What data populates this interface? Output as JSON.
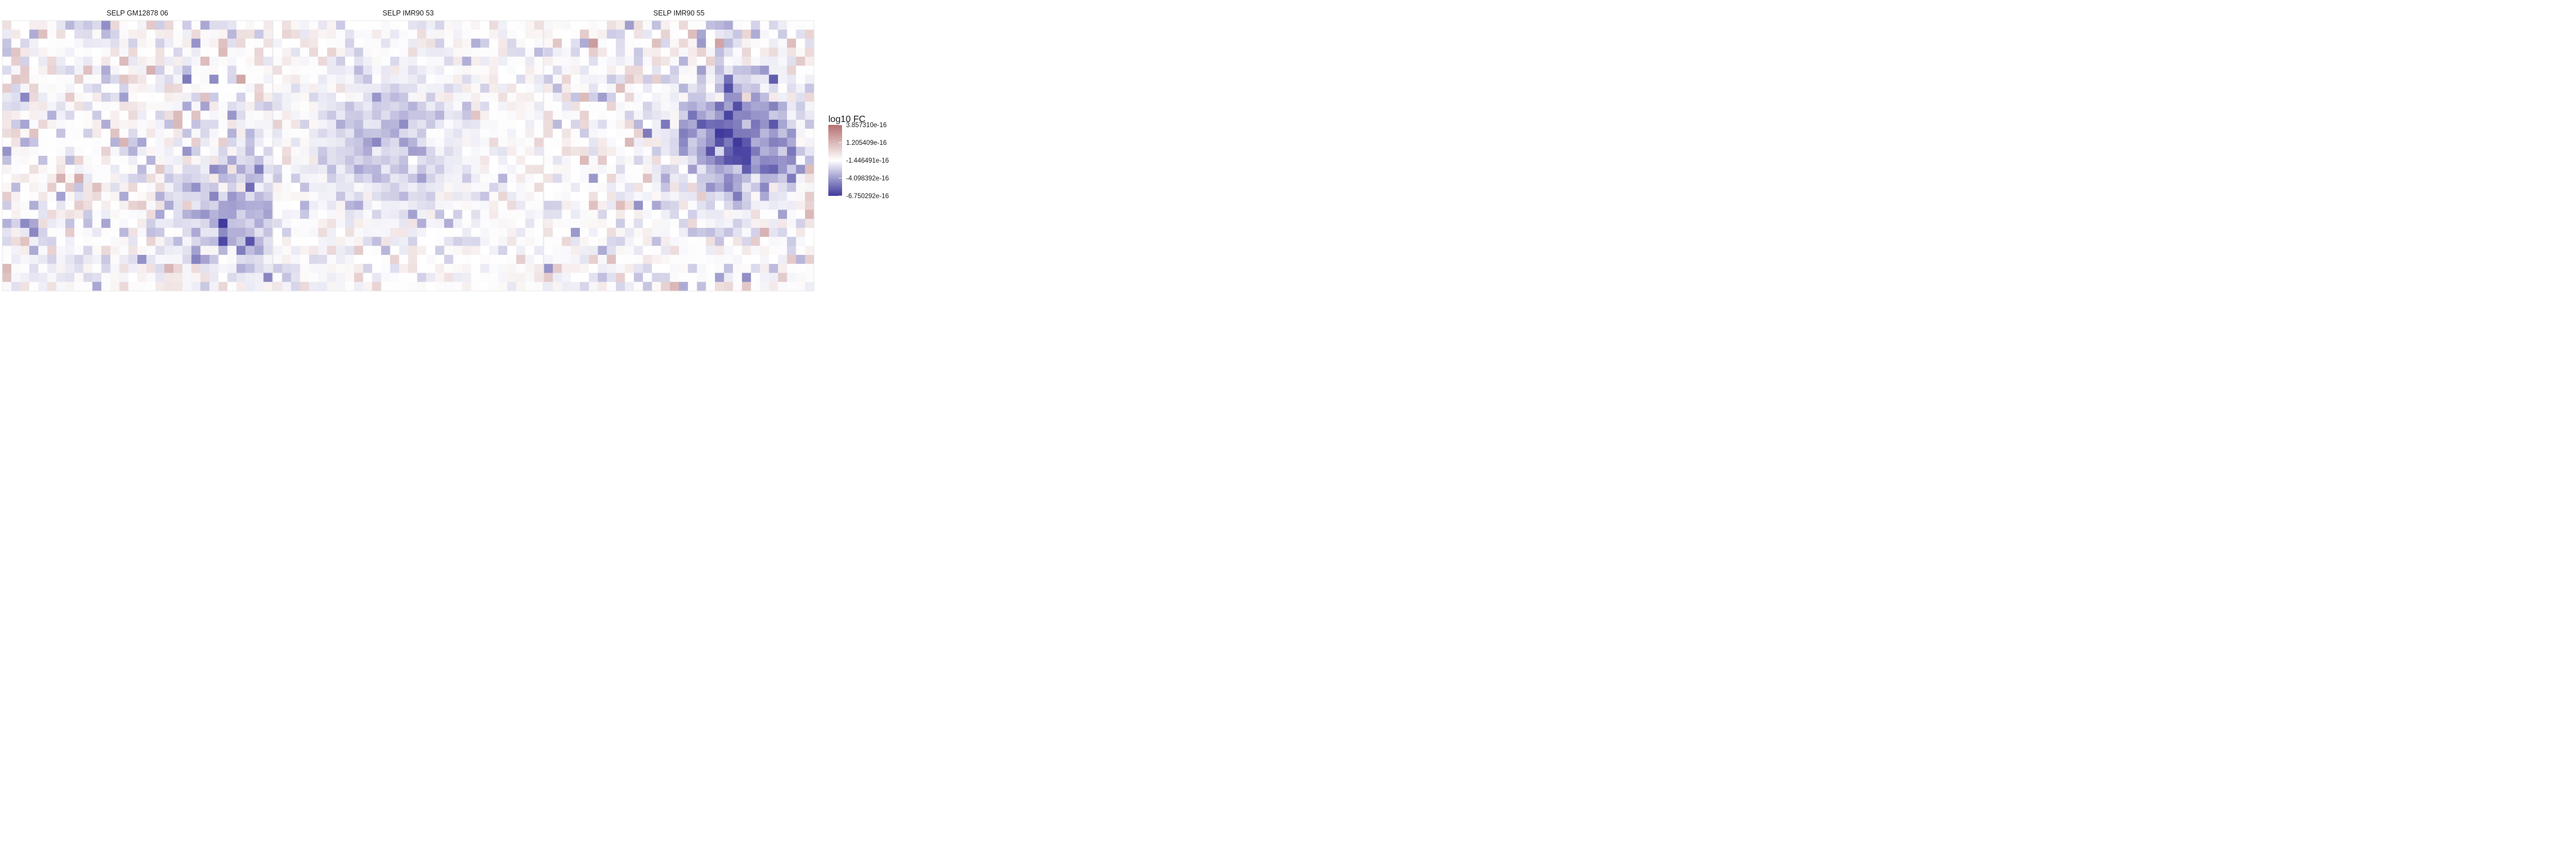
{
  "chart_data": {
    "type": "heatmap",
    "panels": [
      "SELP GM12878 06",
      "SELP IMR90 53",
      "SELP IMR90 55"
    ],
    "grid": [
      30,
      30
    ],
    "color_scale": {
      "low": "#3f3a9c",
      "mid": "#ffffff",
      "high": "#b67070",
      "domain": [
        -6.750292e-16,
        3.85731e-16
      ]
    },
    "legend": {
      "title": "log10 FC",
      "ticks": [
        "3.857310e-16",
        "1.205409e-16",
        "-1.446491e-16",
        "-4.098392e-16",
        "-6.750292e-16"
      ],
      "placement": "right"
    },
    "panel_stats": [
      {
        "noise": 0.23,
        "hotspot": [
          21,
          25,
          0.4,
          5
        ]
      },
      {
        "noise": 0.14,
        "hotspot": [
          13,
          12,
          0.35,
          5
        ]
      },
      {
        "noise": 0.24,
        "hotspot": [
          13,
          21,
          0.95,
          4
        ]
      }
    ]
  }
}
